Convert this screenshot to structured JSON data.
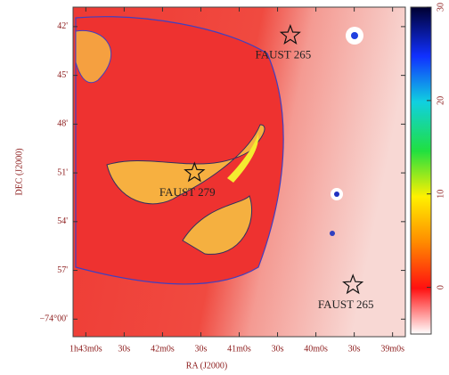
{
  "chart_data": {
    "type": "image",
    "x_label": "RA (J2000)",
    "y_label": "DEC (J2000)",
    "xlim": [
      6190,
      5930
    ],
    "xticks": [
      {
        "value": 6180,
        "label": "1h43m0s"
      },
      {
        "value": 6150,
        "label": "30s"
      },
      {
        "value": 6120,
        "label": "42m0s"
      },
      {
        "value": 6090,
        "label": "30s"
      },
      {
        "value": 6060,
        "label": "41m0s"
      },
      {
        "value": 6030,
        "label": "30s"
      },
      {
        "value": 6000,
        "label": "40m0s"
      },
      {
        "value": 5970,
        "label": "30s"
      },
      {
        "value": 5940,
        "label": "39m0s"
      }
    ],
    "ylim": [
      -74.018,
      -73.68
    ],
    "yticks": [
      {
        "value": -73.7,
        "label": "42'"
      },
      {
        "value": -73.75,
        "label": "45'"
      },
      {
        "value": -73.8,
        "label": "48'"
      },
      {
        "value": -73.85,
        "label": "51'"
      },
      {
        "value": -73.9,
        "label": "54'"
      },
      {
        "value": -73.95,
        "label": "57'"
      },
      {
        "value": -74.0,
        "label": "−74°00'"
      }
    ],
    "colorbar": {
      "lim": [
        -5,
        30
      ],
      "ticks": [
        0,
        10,
        20,
        30
      ]
    },
    "sources": [
      {
        "label": "FAUST 265",
        "x": 6020,
        "y": -73.709
      },
      {
        "label": "FAUST 279",
        "x": 6095,
        "y": -73.85
      },
      {
        "label": "FAUST 265",
        "x": 5971,
        "y": -73.965
      }
    ]
  }
}
